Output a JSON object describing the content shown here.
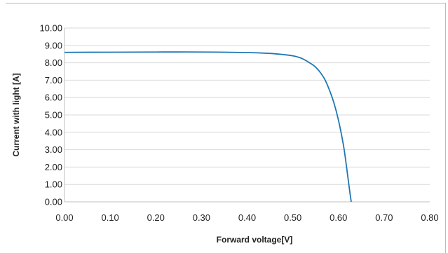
{
  "chart_data": {
    "type": "line",
    "title": "",
    "xlabel": "Forward  voltage[V]",
    "ylabel": "Current with light [A]",
    "xlim": [
      0.0,
      0.8
    ],
    "ylim": [
      0.0,
      10.0
    ],
    "x_ticks": [
      "0.00",
      "0.10",
      "0.20",
      "0.30",
      "0.40",
      "0.50",
      "0.60",
      "0.70",
      "0.80"
    ],
    "y_ticks": [
      "0.00",
      "1.00",
      "2.00",
      "3.00",
      "4.00",
      "5.00",
      "6.00",
      "7.00",
      "8.00",
      "9.00",
      "10.00"
    ],
    "grid": "horizontal",
    "legend": "none",
    "line_color": "#1f77b4",
    "series": [
      {
        "x": [
          0.0,
          0.1,
          0.2,
          0.3,
          0.4,
          0.45,
          0.48,
          0.5,
          0.52,
          0.54,
          0.55,
          0.56,
          0.57,
          0.58,
          0.59,
          0.6,
          0.61,
          0.615,
          0.62,
          0.625,
          0.628
        ],
        "y": [
          8.6,
          8.61,
          8.62,
          8.62,
          8.59,
          8.54,
          8.47,
          8.4,
          8.25,
          7.95,
          7.75,
          7.45,
          7.05,
          6.45,
          5.7,
          4.7,
          3.4,
          2.55,
          1.55,
          0.55,
          0.0
        ]
      }
    ]
  }
}
